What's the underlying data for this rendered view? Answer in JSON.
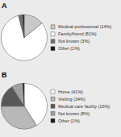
{
  "chart_data": [
    {
      "type": "pie",
      "title": "A",
      "categories": [
        "Medical professional (14%)",
        "Family/friend (81%)",
        "Not known (3%)",
        "Other (1%)"
      ],
      "values": [
        14,
        81,
        3,
        1
      ],
      "colors": [
        "#c8c8c8",
        "#ffffff",
        "#707070",
        "#1a1a1a"
      ],
      "legend": "right"
    },
    {
      "type": "pie",
      "title": "B",
      "categories": [
        "Home (41%)",
        "Visiting (34%)",
        "Medical care facility (16%)",
        "Not known (8%)",
        "Other (1%)"
      ],
      "values": [
        41,
        34,
        16,
        8,
        1
      ],
      "colors": [
        "#ffffff",
        "#b8b8b8",
        "#585858",
        "#a0a0a0",
        "#1a1a1a"
      ],
      "legend": "right"
    }
  ]
}
